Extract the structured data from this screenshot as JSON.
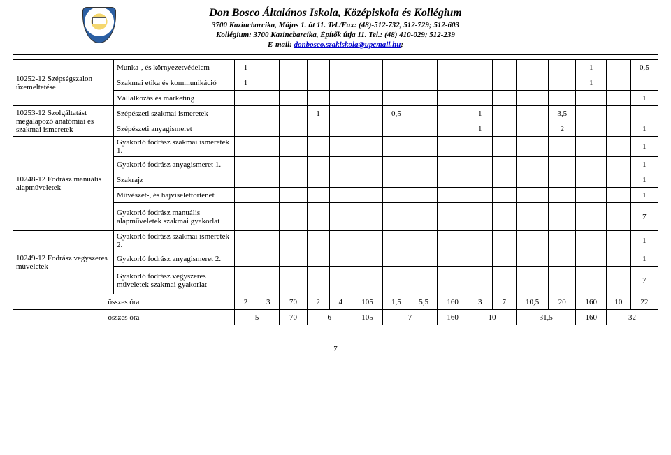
{
  "header": {
    "title": "Don Bosco Általános Iskola, Középiskola és Kollégium",
    "line1": "3700 Kazincbarcika, Május 1. út 11. Tel./Fax: (48)-512-732, 512-729; 512-603",
    "line2": "Kollégium: 3700 Kazincbarcika, Építők útja 11. Tel.: (48) 410-029; 512-239",
    "emailLabel": "E-mail: ",
    "email": "donbosco.szakiskola@upcmail.hu",
    "emailSuffix": ";"
  },
  "colWidths": {
    "rowhead": 125,
    "subhead": 150,
    "c": 34,
    "narrow": 28,
    "wide": 40
  },
  "groups": [
    {
      "label": "10252-12 Szépségszalon üzemeltetése",
      "rows": [
        {
          "name": "Munka-, és környezetvédelem",
          "cells": [
            "1",
            "",
            "",
            "",
            "",
            "",
            "",
            "",
            "",
            "",
            "",
            "",
            "",
            "1",
            "",
            "0,5"
          ]
        },
        {
          "name": "Szakmai etika és kommunikáció",
          "cells": [
            "1",
            "",
            "",
            "",
            "",
            "",
            "",
            "",
            "",
            "",
            "",
            "",
            "",
            "1",
            "",
            ""
          ]
        },
        {
          "name": "Vállalkozás és marketing",
          "cells": [
            "",
            "",
            "",
            "",
            "",
            "",
            "",
            "",
            "",
            "",
            "",
            "",
            "",
            "",
            "",
            "1"
          ]
        }
      ]
    },
    {
      "label": "10253-12 Szolgáltatást megalapozó anatómiai és szakmai ismeretek",
      "rows": [
        {
          "name": "Szépészeti szakmai ismeretek",
          "cells": [
            "",
            "",
            "",
            "1",
            "",
            "",
            "0,5",
            "",
            "",
            "1",
            "",
            "",
            "3,5",
            "",
            "",
            ""
          ]
        },
        {
          "name": "Szépészeti anyagismeret",
          "cells": [
            "",
            "",
            "",
            "",
            "",
            "",
            "",
            "",
            "",
            "1",
            "",
            "",
            "2",
            "",
            "",
            "1"
          ]
        }
      ]
    },
    {
      "label": "10248-12 Fodrász manuális alapműveletek",
      "rows": [
        {
          "name": "Gyakorló fodrász szakmai ismeretek 1.",
          "cells": [
            "",
            "",
            "",
            "",
            "",
            "",
            "",
            "",
            "",
            "",
            "",
            "",
            "",
            "",
            "",
            "1"
          ]
        },
        {
          "name": "Gyakorló fodrász anyagismeret 1.",
          "cells": [
            "",
            "",
            "",
            "",
            "",
            "",
            "",
            "",
            "",
            "",
            "",
            "",
            "",
            "",
            "",
            "1"
          ]
        },
        {
          "name": "Szakrajz",
          "cells": [
            "",
            "",
            "",
            "",
            "",
            "",
            "",
            "",
            "",
            "",
            "",
            "",
            "",
            "",
            "",
            "1"
          ]
        },
        {
          "name": "Művészet-, és hajviselettörténet",
          "cells": [
            "",
            "",
            "",
            "",
            "",
            "",
            "",
            "",
            "",
            "",
            "",
            "",
            "",
            "",
            "",
            "1"
          ]
        },
        {
          "name": "Gyakorló fodrász manuális alapműveletek szakmai gyakorlat",
          "cells": [
            "",
            "",
            "",
            "",
            "",
            "",
            "",
            "",
            "",
            "",
            "",
            "",
            "",
            "",
            "",
            "7"
          ],
          "tall": true
        }
      ]
    },
    {
      "label": "10249-12 Fodrász vegyszeres műveletek",
      "rows": [
        {
          "name": "Gyakorló fodrász szakmai ismeretek 2.",
          "cells": [
            "",
            "",
            "",
            "",
            "",
            "",
            "",
            "",
            "",
            "",
            "",
            "",
            "",
            "",
            "",
            "1"
          ]
        },
        {
          "name": "Gyakorló fodrász anyagismeret 2.",
          "cells": [
            "",
            "",
            "",
            "",
            "",
            "",
            "",
            "",
            "",
            "",
            "",
            "",
            "",
            "",
            "",
            "1"
          ]
        },
        {
          "name": "Gyakorló fodrász vegyszeres műveletek szakmai gyakorlat",
          "cells": [
            "",
            "",
            "",
            "",
            "",
            "",
            "",
            "",
            "",
            "",
            "",
            "",
            "",
            "",
            "",
            "7"
          ],
          "tall": true
        }
      ]
    }
  ],
  "sums": [
    {
      "label": "összes óra",
      "cells": [
        "2",
        "3",
        "70",
        "2",
        "4",
        "105",
        "1,5",
        "5,5",
        "160",
        "3",
        "7",
        "10,5",
        "20",
        "160",
        "10",
        "22"
      ]
    },
    {
      "label": "összes óra",
      "merged": [
        {
          "span": 2,
          "val": "5"
        },
        {
          "span": 1,
          "val": "70"
        },
        {
          "span": 2,
          "val": "6"
        },
        {
          "span": 1,
          "val": "105"
        },
        {
          "span": 2,
          "val": "7"
        },
        {
          "span": 1,
          "val": "160"
        },
        {
          "span": 2,
          "val": "10"
        },
        {
          "span": 2,
          "val": "31,5"
        },
        {
          "span": 1,
          "val": "160"
        },
        {
          "span": 2,
          "val": "32"
        }
      ]
    }
  ],
  "pageNumber": "7"
}
